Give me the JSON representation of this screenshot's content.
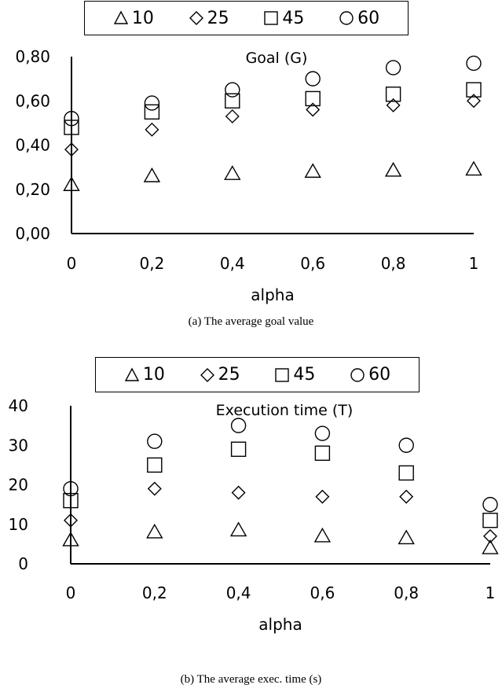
{
  "legend_symbols": [
    "triangle",
    "diamond",
    "square",
    "circle"
  ],
  "chart_data": [
    {
      "type": "scatter",
      "title": "Goal (G)",
      "xlabel": "alpha",
      "ylabel": "",
      "caption": "(a) The average goal value",
      "x": [
        0,
        0.2,
        0.4,
        0.6,
        0.8,
        1
      ],
      "x_tick_labels": [
        "0",
        "0,2",
        "0,4",
        "0,6",
        "0,8",
        "1"
      ],
      "y_tick_labels": [
        "0,00",
        "0,20",
        "0,40",
        "0,60",
        "0,80"
      ],
      "ylim": [
        0,
        0.8
      ],
      "grid": false,
      "legend_position": "top",
      "series": [
        {
          "name": "10",
          "marker": "triangle",
          "values": [
            0.22,
            0.26,
            0.27,
            0.28,
            0.285,
            0.29
          ]
        },
        {
          "name": "25",
          "marker": "diamond",
          "values": [
            0.38,
            0.47,
            0.53,
            0.56,
            0.58,
            0.6
          ]
        },
        {
          "name": "45",
          "marker": "square",
          "values": [
            0.48,
            0.55,
            0.6,
            0.61,
            0.63,
            0.65
          ]
        },
        {
          "name": "60",
          "marker": "circle",
          "values": [
            0.52,
            0.59,
            0.65,
            0.7,
            0.75,
            0.77
          ]
        }
      ]
    },
    {
      "type": "scatter",
      "title": "Execution time (T)",
      "xlabel": "alpha",
      "ylabel": "",
      "caption": "(b) The average exec. time (s)",
      "x": [
        0,
        0.2,
        0.4,
        0.6,
        0.8,
        1
      ],
      "x_tick_labels": [
        "0",
        "0,2",
        "0,4",
        "0,6",
        "0,8",
        "1"
      ],
      "y_tick_labels": [
        "0",
        "10",
        "20",
        "30",
        "40"
      ],
      "ylim": [
        0,
        40
      ],
      "grid": false,
      "legend_position": "top",
      "series": [
        {
          "name": "10",
          "marker": "triangle",
          "values": [
            6,
            8,
            8.5,
            7,
            6.5,
            4
          ]
        },
        {
          "name": "25",
          "marker": "diamond",
          "values": [
            11,
            19,
            18,
            17,
            17,
            7
          ]
        },
        {
          "name": "45",
          "marker": "square",
          "values": [
            16,
            25,
            29,
            28,
            23,
            11
          ]
        },
        {
          "name": "60",
          "marker": "circle",
          "values": [
            19,
            31,
            35,
            33,
            30,
            15
          ]
        }
      ]
    }
  ]
}
